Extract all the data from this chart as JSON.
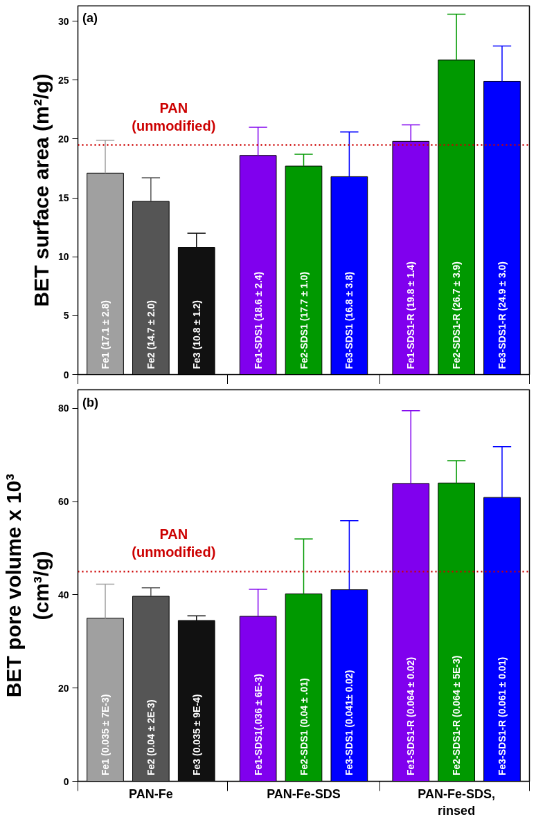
{
  "chart_data": [
    {
      "type": "bar",
      "ylabel": "BET surface area (m²/g)",
      "annotations": [
        "(a)"
      ],
      "tick_labels": "y",
      "categories": [
        null,
        null,
        null,
        null,
        null,
        null,
        null,
        null,
        null
      ],
      "values": [
        17.1,
        14.7,
        10.8,
        18.6,
        17.7,
        16.8,
        19.8,
        26.7,
        24.9
      ],
      "errors": [
        [
          17.1,
          19.9
        ],
        [
          14.7,
          16.7
        ],
        [
          10.8,
          12.0
        ],
        [
          18.6,
          21.0
        ],
        [
          17.7,
          18.7
        ],
        [
          16.8,
          20.6
        ],
        [
          19.8,
          21.2
        ],
        [
          26.7,
          30.6
        ],
        [
          24.9,
          27.9
        ]
      ],
      "colors": [
        "#a0a0a0",
        "#555555",
        "#111111",
        "#8000ee",
        "#009900",
        "#0000ff",
        "#8000ee",
        "#009900",
        "#0000ff"
      ],
      "value_labels": [
        "Fe1 (17.1 ± 2.8)",
        "Fe2 (14.7 ± 2.0)",
        "Fe3 (10.8 ± 1.2)",
        "Fe1-SDS1 (18.6 ± 2.4)",
        "Fe2-SDS1 (17.7 ± 1.0)",
        "Fe3-SDS1 (16.8 ± 3.8)",
        "Fe1-SDS1-R (19.8 ± 1.4)",
        "Fe2-SDS1-R (26.7 ± 3.9)",
        "Fe3-SDS1-R (24.9 ± 3.0)"
      ],
      "ylim": [
        0,
        31.3
      ],
      "yticks": [
        0,
        5,
        10,
        15,
        20,
        25,
        30
      ],
      "grid": false,
      "ref_lines": [
        {
          "axis": "y",
          "value": 19.5,
          "label": "PAN\n(unmodified)",
          "color": "#cc0000",
          "line_style": "dotted"
        }
      ]
    },
    {
      "type": "bar",
      "ylabel": "BET pore volume x 10³\n(cm³/g)",
      "annotations": [
        "(b)",
        "PAN-Fe",
        "PAN-Fe-SDS",
        "PAN-Fe-SDS,\nrinsed"
      ],
      "categories": [
        null,
        null,
        null,
        null,
        null,
        null,
        null,
        null,
        null
      ],
      "values": [
        35.0,
        39.7,
        34.5,
        35.4,
        40.2,
        41.1,
        63.9,
        64.0,
        60.9
      ],
      "errors": [
        [
          35.0,
          42.3
        ],
        [
          39.7,
          41.5
        ],
        [
          34.5,
          35.5
        ],
        [
          35.4,
          41.2
        ],
        [
          40.2,
          52.0
        ],
        [
          41.1,
          55.9
        ],
        [
          63.9,
          79.5
        ],
        [
          64.0,
          68.8
        ],
        [
          60.9,
          71.8
        ]
      ],
      "colors": [
        "#a0a0a0",
        "#555555",
        "#111111",
        "#8000ee",
        "#009900",
        "#0000ff",
        "#8000ee",
        "#009900",
        "#0000ff"
      ],
      "value_labels": [
        "Fe1 (0.035 ± 7E-3)",
        "Fe2 (0.04 ± 2E-3)",
        "Fe3 (0.035 ± 9E-4)",
        "Fe1-SDS1(.036 ± 6E-3)",
        "Fe2-SDS1 (0.04 ± .01)",
        "Fe3-SDS1 (0.041± 0.02)",
        "Fe1-SDS1-R (0.064 ± 0.02)",
        "Fe2-SDS1-R (0.064 ± 5E-3)",
        "Fe3-SDS1-R (0.061 ± 0.01)"
      ],
      "ylim": [
        0,
        84
      ],
      "yticks": [
        0,
        20,
        40,
        60,
        80
      ],
      "grid": false,
      "ref_lines": [
        {
          "axis": "y",
          "value": 45,
          "label": "PAN\n(unmodified)",
          "color": "#cc0000",
          "line_style": "dotted"
        }
      ]
    }
  ]
}
